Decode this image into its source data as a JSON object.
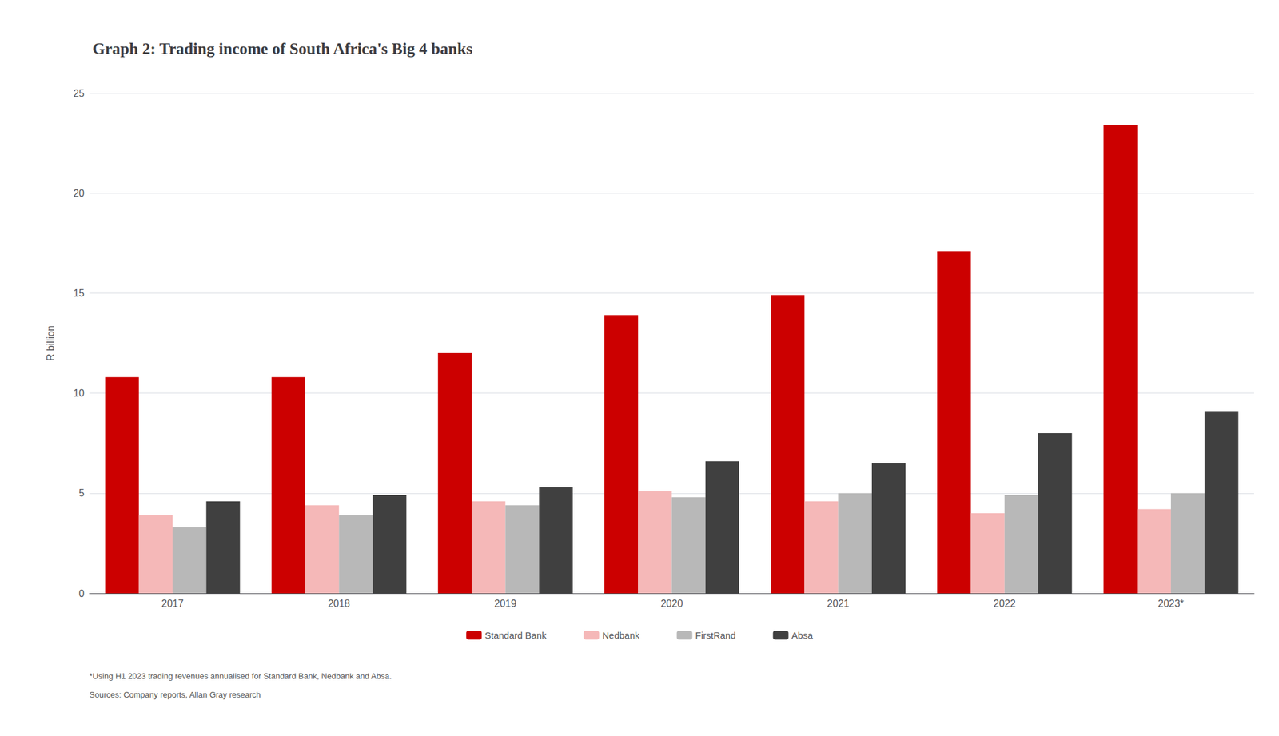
{
  "chart_data": {
    "type": "bar",
    "title": "Graph 2: Trading income of South Africa's Big 4 banks",
    "ylabel": "R billion",
    "categories": [
      "2017",
      "2018",
      "2019",
      "2020",
      "2021",
      "2022",
      "2023*"
    ],
    "series": [
      {
        "name": "Standard Bank",
        "color": "#cc0000",
        "values": [
          10.8,
          10.8,
          12.0,
          13.9,
          14.9,
          17.1,
          23.4
        ]
      },
      {
        "name": "Nedbank",
        "color": "#f5b8b8",
        "values": [
          3.9,
          4.4,
          4.6,
          5.1,
          4.6,
          4.0,
          4.2
        ]
      },
      {
        "name": "FirstRand",
        "color": "#b8b8b8",
        "values": [
          3.3,
          3.9,
          4.4,
          4.8,
          5.0,
          4.9,
          5.0
        ]
      },
      {
        "name": "Absa",
        "color": "#404040",
        "values": [
          4.6,
          4.9,
          5.3,
          6.6,
          6.5,
          8.0,
          9.1
        ]
      }
    ],
    "ylim": [
      0,
      25
    ],
    "yticks": [
      0,
      5,
      10,
      15,
      20,
      25
    ],
    "grid": true,
    "legend": "bottom",
    "annotations": [
      "*Using H1 2023 trading revenues annualised for Standard Bank, Nedbank and Absa.",
      "Sources: Company reports, Allan Gray research"
    ]
  }
}
